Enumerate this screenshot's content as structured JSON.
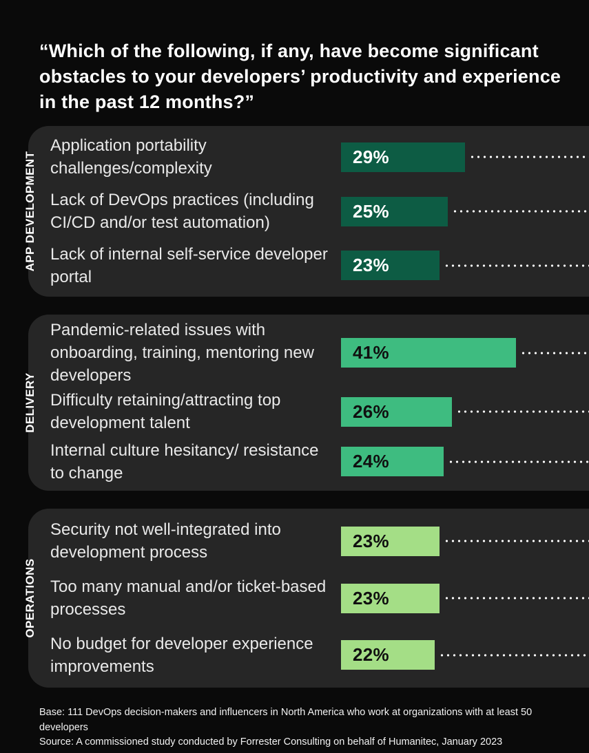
{
  "title": "“Which of the following, if any, have become significant obstacles to your developers’ productivity and experience in the past 12 months?”",
  "colors": {
    "page_bg": "#0a0a0a",
    "card_bg": "#262626",
    "dot_color": "#ffffff",
    "group1_bar": "#0d5c44",
    "group2_bar": "#3ebc80",
    "group3_bar": "#a4de86"
  },
  "chart_data": {
    "type": "bar",
    "orientation": "horizontal",
    "unit": "%",
    "xlim": [
      0,
      50
    ],
    "grid": false,
    "legend": "none",
    "title": "“Which of the following, if any, have become significant obstacles to your developers’ productivity and experience in the past 12 months?”",
    "groups": [
      {
        "name": "APP DEVELOPMENT",
        "bar_color": "#0d5c44",
        "value_label_color": "#ffffff",
        "items": [
          {
            "label": "Application portability challenges/complexity",
            "value": 29,
            "pct_label": "29%"
          },
          {
            "label": "Lack of DevOps practices (including CI/CD and/or test automation)",
            "value": 25,
            "pct_label": "25%"
          },
          {
            "label": "Lack of internal self-service developer portal",
            "value": 23,
            "pct_label": "23%"
          }
        ]
      },
      {
        "name": "DELIVERY",
        "bar_color": "#3ebc80",
        "value_label_color": "#101010",
        "items": [
          {
            "label": "Pandemic-related issues with onboarding, training, mentoring new developers",
            "value": 41,
            "pct_label": "41%"
          },
          {
            "label": "Difficulty retaining/attracting top development talent",
            "value": 26,
            "pct_label": "26%"
          },
          {
            "label": "Internal culture hesitancy/ resistance to change",
            "value": 24,
            "pct_label": "24%"
          }
        ]
      },
      {
        "name": "OPERATIONS",
        "bar_color": "#a4de86",
        "value_label_color": "#101010",
        "items": [
          {
            "label": "Security not well-integrated into development process",
            "value": 23,
            "pct_label": "23%"
          },
          {
            "label": "Too many manual and/or ticket-based processes",
            "value": 23,
            "pct_label": "23%"
          },
          {
            "label": "No budget for developer experience improvements",
            "value": 22,
            "pct_label": "22%"
          }
        ]
      }
    ]
  },
  "footer": {
    "base": "Base: 111 DevOps decision-makers and influencers in North America who work at organizations with at least 50 developers",
    "source": "Source: A commissioned study conducted by Forrester Consulting on behalf of Humanitec, January 2023"
  }
}
